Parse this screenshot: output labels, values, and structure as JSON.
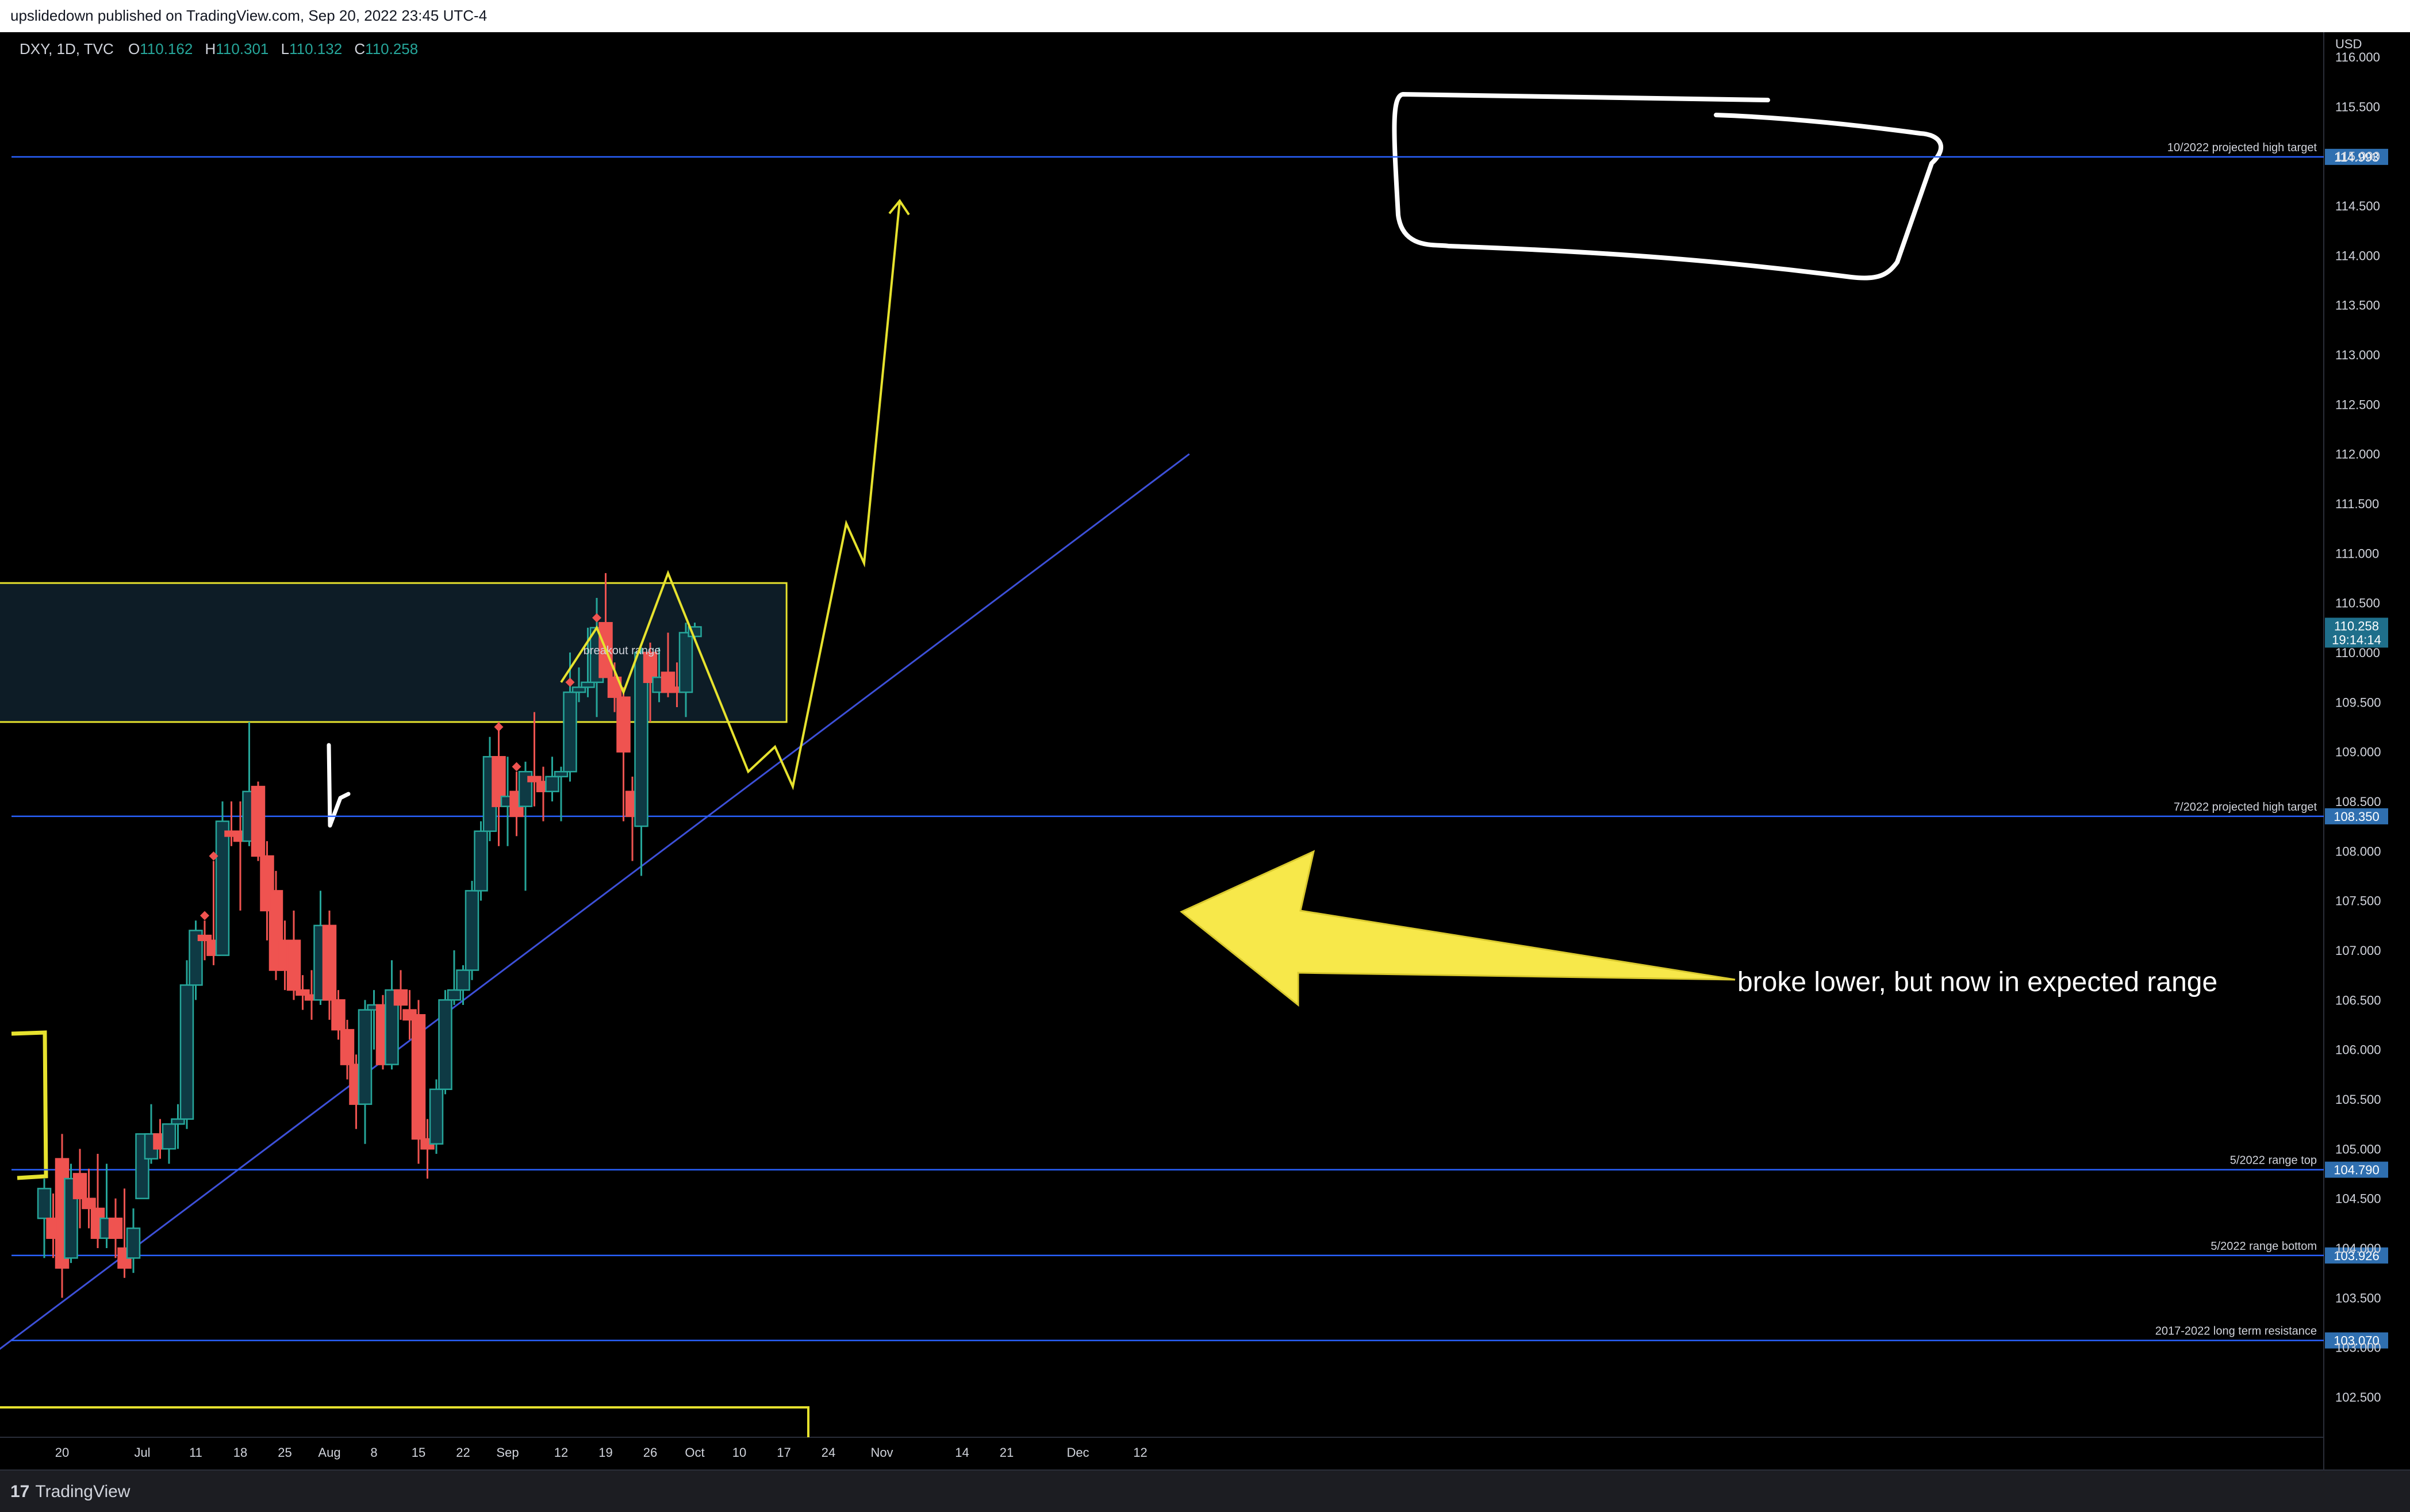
{
  "header": {
    "text": "upslidedown published on TradingView.com, Sep 20, 2022 23:45 UTC-4"
  },
  "footer": {
    "logo_mark": "17",
    "logo_text": "TradingView"
  },
  "colors": {
    "up": "#26a69a",
    "up_body": "#0e3a44",
    "down": "#ef5350",
    "level_line": "#2962ff",
    "level_tag": "#2f6fb0",
    "box_border": "#e6e22e",
    "box_fill": "#0d1c26",
    "path": "#e6e22e",
    "arrow_fill": "#f7e84a",
    "trendline": "#3d50d8",
    "drawing": "#ffffff"
  },
  "chart_data": {
    "type": "candlestick",
    "symbol": "DXY, 1D, TVC",
    "ohlc_legend": {
      "o_label": "O",
      "o": "110.162",
      "h_label": "H",
      "h": "110.301",
      "l_label": "L",
      "l": "110.132",
      "c_label": "C",
      "c": "110.258"
    },
    "currency": "USD",
    "ylim": [
      102.05,
      116.35
    ],
    "y_ticks": [
      "102.500",
      "103.000",
      "103.500",
      "104.000",
      "104.500",
      "105.000",
      "105.500",
      "106.000",
      "106.500",
      "107.000",
      "107.500",
      "108.000",
      "108.500",
      "109.000",
      "109.500",
      "110.000",
      "110.500",
      "111.000",
      "111.500",
      "112.000",
      "112.500",
      "113.000",
      "113.500",
      "114.000",
      "114.500",
      "115.000",
      "115.500",
      "116.000"
    ],
    "x_ticks": [
      {
        "label": "20",
        "i": 0
      },
      {
        "label": "Jul",
        "i": 9
      },
      {
        "label": "11",
        "i": 15
      },
      {
        "label": "18",
        "i": 20
      },
      {
        "label": "25",
        "i": 25
      },
      {
        "label": "Aug",
        "i": 30
      },
      {
        "label": "8",
        "i": 35
      },
      {
        "label": "15",
        "i": 40
      },
      {
        "label": "22",
        "i": 45
      },
      {
        "label": "Sep",
        "i": 50
      },
      {
        "label": "12",
        "i": 56
      },
      {
        "label": "19",
        "i": 61
      },
      {
        "label": "26",
        "i": 66
      },
      {
        "label": "Oct",
        "i": 71
      },
      {
        "label": "10",
        "i": 76
      },
      {
        "label": "17",
        "i": 81
      },
      {
        "label": "24",
        "i": 86
      },
      {
        "label": "Nov",
        "i": 92
      },
      {
        "label": "14",
        "i": 101
      },
      {
        "label": "21",
        "i": 106
      },
      {
        "label": "Dec",
        "i": 114
      },
      {
        "label": "12",
        "i": 121
      }
    ],
    "candles": [
      {
        "i": -2,
        "o": 104.3,
        "h": 104.7,
        "l": 103.9,
        "c": 104.6
      },
      {
        "i": -1,
        "o": 104.3,
        "h": 104.55,
        "l": 103.9,
        "c": 104.1
      },
      {
        "i": 0,
        "o": 104.9,
        "h": 105.15,
        "l": 103.5,
        "c": 103.8
      },
      {
        "i": 1,
        "o": 103.9,
        "h": 104.85,
        "l": 103.85,
        "c": 104.7
      },
      {
        "i": 2,
        "o": 104.75,
        "h": 105.0,
        "l": 104.2,
        "c": 104.5
      },
      {
        "i": 3,
        "o": 104.5,
        "h": 104.8,
        "l": 104.2,
        "c": 104.4
      },
      {
        "i": 4,
        "o": 104.4,
        "h": 104.95,
        "l": 104.0,
        "c": 104.1
      },
      {
        "i": 5,
        "o": 104.1,
        "h": 104.85,
        "l": 104.0,
        "c": 104.3
      },
      {
        "i": 6,
        "o": 104.3,
        "h": 104.5,
        "l": 103.9,
        "c": 104.1
      },
      {
        "i": 7,
        "o": 104.0,
        "h": 104.6,
        "l": 103.7,
        "c": 103.8
      },
      {
        "i": 8,
        "o": 103.9,
        "h": 104.4,
        "l": 103.75,
        "c": 104.2
      },
      {
        "i": 9,
        "o": 104.5,
        "h": 105.15,
        "l": 104.5,
        "c": 105.15
      },
      {
        "i": 10,
        "o": 104.9,
        "h": 105.45,
        "l": 104.85,
        "c": 105.15
      },
      {
        "i": 11,
        "o": 105.15,
        "h": 105.3,
        "l": 104.9,
        "c": 105.0
      },
      {
        "i": 12,
        "o": 105.0,
        "h": 105.25,
        "l": 104.85,
        "c": 105.25
      },
      {
        "i": 13,
        "o": 105.25,
        "h": 105.45,
        "l": 105.0,
        "c": 105.3
      },
      {
        "i": 14,
        "o": 105.3,
        "h": 106.9,
        "l": 105.2,
        "c": 106.65
      },
      {
        "i": 15,
        "o": 106.65,
        "h": 107.3,
        "l": 106.5,
        "c": 107.2
      },
      {
        "i": 16,
        "o": 107.15,
        "h": 107.3,
        "l": 106.9,
        "c": 107.1
      },
      {
        "i": 17,
        "o": 107.1,
        "h": 107.9,
        "l": 106.85,
        "c": 106.95
      },
      {
        "i": 18,
        "o": 106.95,
        "h": 108.5,
        "l": 106.95,
        "c": 108.3
      },
      {
        "i": 19,
        "o": 108.2,
        "h": 108.5,
        "l": 108.05,
        "c": 108.15
      },
      {
        "i": 20,
        "o": 108.2,
        "h": 108.5,
        "l": 107.4,
        "c": 108.1
      },
      {
        "i": 21,
        "o": 108.1,
        "h": 109.3,
        "l": 108.05,
        "c": 108.6
      },
      {
        "i": 22,
        "o": 108.65,
        "h": 108.7,
        "l": 107.9,
        "c": 107.95
      },
      {
        "i": 23,
        "o": 107.95,
        "h": 108.1,
        "l": 107.1,
        "c": 107.4
      },
      {
        "i": 24,
        "o": 107.6,
        "h": 107.8,
        "l": 106.7,
        "c": 106.8
      },
      {
        "i": 25,
        "o": 107.1,
        "h": 107.3,
        "l": 106.6,
        "c": 106.8
      },
      {
        "i": 26,
        "o": 107.1,
        "h": 107.4,
        "l": 106.5,
        "c": 106.6
      },
      {
        "i": 27,
        "o": 106.6,
        "h": 106.75,
        "l": 106.4,
        "c": 106.55
      },
      {
        "i": 28,
        "o": 106.55,
        "h": 106.8,
        "l": 106.3,
        "c": 106.5
      },
      {
        "i": 29,
        "o": 106.5,
        "h": 107.6,
        "l": 106.45,
        "c": 107.25
      },
      {
        "i": 30,
        "o": 107.25,
        "h": 107.4,
        "l": 106.3,
        "c": 106.5
      },
      {
        "i": 31,
        "o": 106.5,
        "h": 106.6,
        "l": 106.1,
        "c": 106.2
      },
      {
        "i": 32,
        "o": 106.2,
        "h": 106.3,
        "l": 105.7,
        "c": 105.85
      },
      {
        "i": 33,
        "o": 105.85,
        "h": 105.95,
        "l": 105.2,
        "c": 105.45
      },
      {
        "i": 34,
        "o": 105.45,
        "h": 106.5,
        "l": 105.05,
        "c": 106.4
      },
      {
        "i": 35,
        "o": 106.4,
        "h": 106.6,
        "l": 106.0,
        "c": 106.45
      },
      {
        "i": 36,
        "o": 106.45,
        "h": 106.55,
        "l": 105.8,
        "c": 105.85
      },
      {
        "i": 37,
        "o": 105.85,
        "h": 106.9,
        "l": 105.8,
        "c": 106.6
      },
      {
        "i": 38,
        "o": 106.6,
        "h": 106.8,
        "l": 106.3,
        "c": 106.45
      },
      {
        "i": 39,
        "o": 106.4,
        "h": 106.6,
        "l": 106.1,
        "c": 106.3
      },
      {
        "i": 40,
        "o": 106.35,
        "h": 106.5,
        "l": 104.85,
        "c": 105.1
      },
      {
        "i": 41,
        "o": 105.1,
        "h": 105.3,
        "l": 104.7,
        "c": 105.0
      },
      {
        "i": 42,
        "o": 105.05,
        "h": 105.7,
        "l": 104.95,
        "c": 105.6
      },
      {
        "i": 43,
        "o": 105.6,
        "h": 106.6,
        "l": 105.55,
        "c": 106.5
      },
      {
        "i": 44,
        "o": 106.5,
        "h": 107.0,
        "l": 106.45,
        "c": 106.6
      },
      {
        "i": 45,
        "o": 106.6,
        "h": 106.85,
        "l": 106.45,
        "c": 106.8
      },
      {
        "i": 46,
        "o": 106.8,
        "h": 107.7,
        "l": 106.7,
        "c": 107.6
      },
      {
        "i": 47,
        "o": 107.6,
        "h": 108.3,
        "l": 107.5,
        "c": 108.2
      },
      {
        "i": 48,
        "o": 108.2,
        "h": 109.15,
        "l": 108.1,
        "c": 108.95
      },
      {
        "i": 49,
        "o": 108.95,
        "h": 109.3,
        "l": 108.05,
        "c": 108.45
      },
      {
        "i": 50,
        "o": 108.45,
        "h": 108.95,
        "l": 108.05,
        "c": 108.55
      },
      {
        "i": 51,
        "o": 108.6,
        "h": 108.8,
        "l": 108.15,
        "c": 108.35
      },
      {
        "i": 52,
        "o": 108.45,
        "h": 108.9,
        "l": 107.6,
        "c": 108.8
      },
      {
        "i": 53,
        "o": 108.75,
        "h": 109.4,
        "l": 108.45,
        "c": 108.7
      },
      {
        "i": 54,
        "o": 108.7,
        "h": 108.85,
        "l": 108.3,
        "c": 108.6
      },
      {
        "i": 55,
        "o": 108.6,
        "h": 108.95,
        "l": 108.5,
        "c": 108.75
      },
      {
        "i": 56,
        "o": 108.75,
        "h": 108.85,
        "l": 108.3,
        "c": 108.8
      },
      {
        "i": 57,
        "o": 108.8,
        "h": 110.0,
        "l": 108.7,
        "c": 109.6
      },
      {
        "i": 58,
        "o": 109.6,
        "h": 109.85,
        "l": 109.5,
        "c": 109.65
      },
      {
        "i": 59,
        "o": 109.65,
        "h": 110.25,
        "l": 109.55,
        "c": 109.7
      },
      {
        "i": 60,
        "o": 109.7,
        "h": 110.55,
        "l": 109.35,
        "c": 110.25
      },
      {
        "i": 61,
        "o": 110.3,
        "h": 110.8,
        "l": 109.75,
        "c": 109.75
      },
      {
        "i": 62,
        "o": 109.75,
        "h": 109.9,
        "l": 109.4,
        "c": 109.55
      },
      {
        "i": 63,
        "o": 109.55,
        "h": 109.65,
        "l": 108.3,
        "c": 109.0
      },
      {
        "i": 64,
        "o": 108.6,
        "h": 108.75,
        "l": 107.9,
        "c": 108.35
      },
      {
        "i": 65,
        "o": 108.25,
        "h": 110.05,
        "l": 107.75,
        "c": 110.0
      },
      {
        "i": 66,
        "o": 110.0,
        "h": 110.1,
        "l": 109.3,
        "c": 109.7
      },
      {
        "i": 67,
        "o": 109.6,
        "h": 110.05,
        "l": 109.5,
        "c": 109.75
      },
      {
        "i": 68,
        "o": 109.8,
        "h": 110.2,
        "l": 109.55,
        "c": 109.6
      },
      {
        "i": 69,
        "o": 109.65,
        "h": 109.9,
        "l": 109.45,
        "c": 109.6
      },
      {
        "i": 70,
        "o": 109.6,
        "h": 110.3,
        "l": 109.35,
        "c": 110.2
      },
      {
        "i": 71,
        "o": 110.162,
        "h": 110.301,
        "l": 110.132,
        "c": 110.258
      }
    ],
    "diamonds": [
      {
        "i": 17,
        "y": 107.95
      },
      {
        "i": 16,
        "y": 107.35
      },
      {
        "i": 49,
        "y": 109.25
      },
      {
        "i": 51,
        "y": 108.85
      },
      {
        "i": 57,
        "y": 109.7
      },
      {
        "i": 60,
        "y": 110.35
      }
    ],
    "levels": [
      {
        "label": "10/2022 projected high target",
        "value": "114.993",
        "y": 114.993
      },
      {
        "label": "7/2022 projected high target",
        "value": "108.350",
        "y": 108.35
      },
      {
        "label": "5/2022 range top",
        "value": "104.790",
        "y": 104.79
      },
      {
        "label": "5/2022 range bottom",
        "value": "103.926",
        "y": 103.926
      },
      {
        "label": "2017-2022 long term resistance",
        "value": "103.070",
        "y": 103.07
      }
    ],
    "current_price": {
      "value": "110.258",
      "countdown": "19:14:14",
      "y": 110.258
    },
    "breakout_box": {
      "label": "breakout range",
      "y_top": 110.7,
      "y_bottom": 109.3,
      "i_start": -10.6,
      "i_end": 81.3
    },
    "projection_path": [
      {
        "i": 56,
        "y": 109.7
      },
      {
        "i": 60,
        "y": 110.25
      },
      {
        "i": 63,
        "y": 109.6
      },
      {
        "i": 68,
        "y": 110.8
      },
      {
        "i": 77,
        "y": 108.8
      },
      {
        "i": 80,
        "y": 109.05
      },
      {
        "i": 82,
        "y": 108.65
      },
      {
        "i": 88,
        "y": 111.3
      },
      {
        "i": 90,
        "y": 110.9
      },
      {
        "i": 94,
        "y": 114.55
      }
    ],
    "trendline": [
      {
        "i": -18.6,
        "y": 102.2
      },
      {
        "i": 126.5,
        "y": 112.0
      }
    ],
    "annotation": "broke lower, but now in expected range"
  }
}
